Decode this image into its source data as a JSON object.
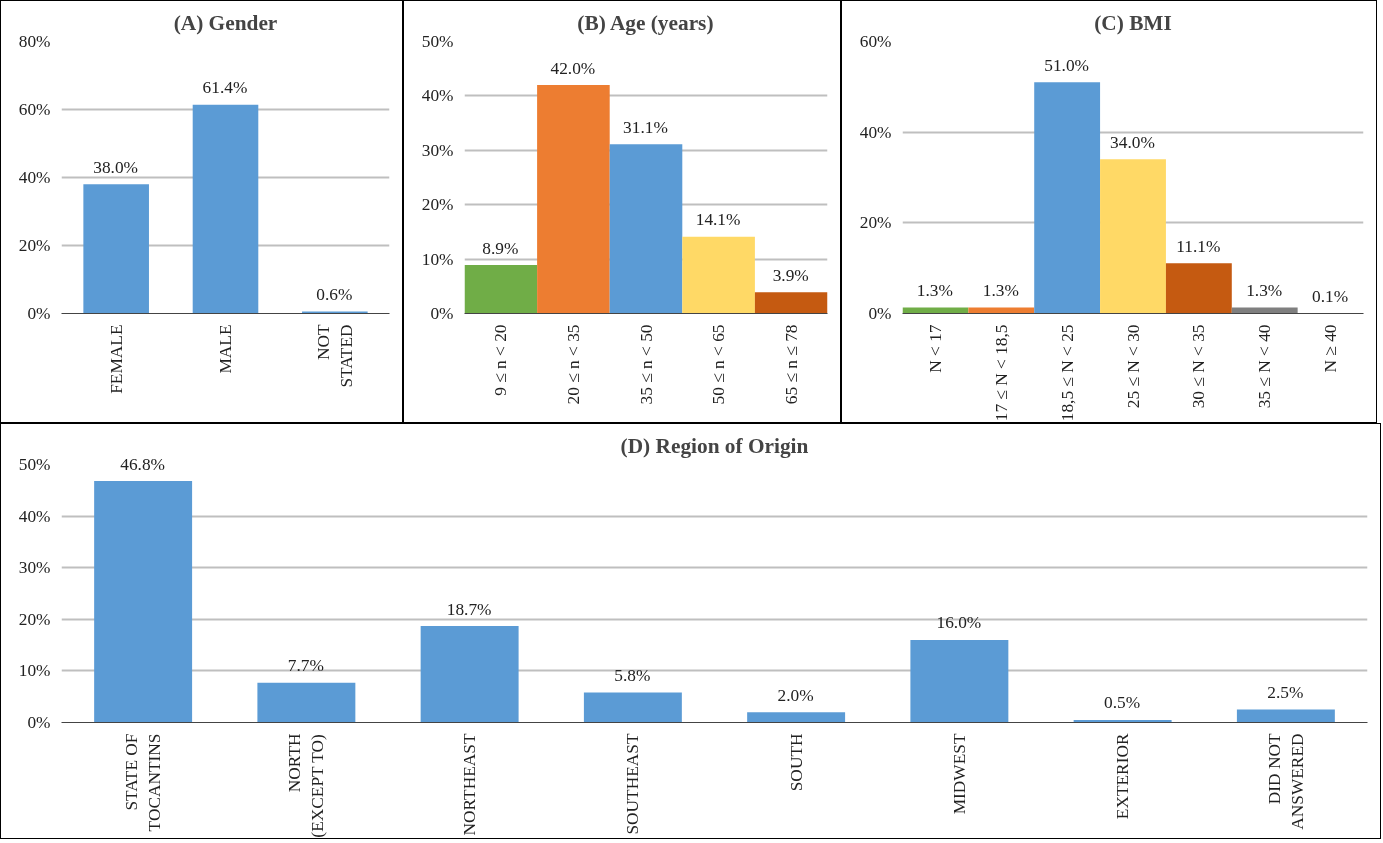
{
  "chart_data": [
    {
      "type": "bar",
      "title": "(A) Gender",
      "categories": [
        "FEMALE",
        "MALE",
        "NOT\nSTATED"
      ],
      "values": [
        38.0,
        61.4,
        0.6
      ],
      "color": "#5b9bd5",
      "value_labels": [
        "38.0%",
        "61.4%",
        "0.6%"
      ],
      "ylim": [
        0,
        80
      ],
      "yticks": [
        {
          "value": 0,
          "label": "0%"
        },
        {
          "value": 20,
          "label": "20%"
        },
        {
          "value": 40,
          "label": "40%"
        },
        {
          "value": 60,
          "label": "60%"
        },
        {
          "value": 80,
          "label": "80%"
        }
      ],
      "grid": "y"
    },
    {
      "type": "bar",
      "title": "(B) Age (years)",
      "categories": [
        "9 ≤ n < 20",
        "20 ≤ n < 35",
        "35 ≤ n < 50",
        "50 ≤ n < 65",
        "65 ≤ n ≤ 78"
      ],
      "values": [
        8.9,
        42.0,
        31.1,
        14.1,
        3.9
      ],
      "colors": [
        "#70ad47",
        "#ed7d31",
        "#5b9bd5",
        "#ffd966",
        "#c55a11"
      ],
      "value_labels": [
        "8.9%",
        "42.0%",
        "31.1%",
        "14.1%",
        "3.9%"
      ],
      "ylim": [
        0,
        50
      ],
      "yticks": [
        {
          "value": 0,
          "label": "0%"
        },
        {
          "value": 10,
          "label": "10%"
        },
        {
          "value": 20,
          "label": "20%"
        },
        {
          "value": 30,
          "label": "30%"
        },
        {
          "value": 40,
          "label": "40%"
        },
        {
          "value": 50,
          "label": "50%"
        }
      ],
      "grid": "y"
    },
    {
      "type": "bar",
      "title": "(C) BMI",
      "categories": [
        "N < 17",
        "17 ≤ N < 18,5",
        "18,5 ≤ N < 25",
        "25 ≤ N < 30",
        "30 ≤ N < 35",
        "35 ≤ N < 40",
        "N ≥ 40"
      ],
      "values": [
        1.3,
        1.3,
        51.0,
        34.0,
        11.1,
        1.3,
        0.1
      ],
      "colors": [
        "#70ad47",
        "#ed7d31",
        "#5b9bd5",
        "#ffd966",
        "#c55a11",
        "#7f7f7f",
        "#5b9bd5"
      ],
      "value_labels": [
        "1.3%",
        "1.3%",
        "51.0%",
        "34.0%",
        "11.1%",
        "1.3%",
        "0.1%"
      ],
      "ylim": [
        0,
        60
      ],
      "yticks": [
        {
          "value": 0,
          "label": "0%"
        },
        {
          "value": 20,
          "label": "20%"
        },
        {
          "value": 40,
          "label": "40%"
        },
        {
          "value": 60,
          "label": "60%"
        }
      ],
      "grid": "y"
    },
    {
      "type": "bar",
      "title": "(D) Region of Origin",
      "categories": [
        "STATE OF\nTOCANTINS",
        "NORTH\n(EXCEPT TO)",
        "NORTHEAST",
        "SOUTHEAST",
        "SOUTH",
        "MIDWEST",
        "EXTERIOR",
        "DID NOT\nANSWERED"
      ],
      "values": [
        46.8,
        7.7,
        18.7,
        5.8,
        2.0,
        16.0,
        0.5,
        2.5
      ],
      "color": "#5b9bd5",
      "value_labels": [
        "46.8%",
        "7.7%",
        "18.7%",
        "5.8%",
        "2.0%",
        "16.0%",
        "0.5%",
        "2.5%"
      ],
      "ylim": [
        0,
        50
      ],
      "yticks": [
        {
          "value": 0,
          "label": "0%"
        },
        {
          "value": 10,
          "label": "10%"
        },
        {
          "value": 20,
          "label": "20%"
        },
        {
          "value": 30,
          "label": "30%"
        },
        {
          "value": 40,
          "label": "40%"
        },
        {
          "value": 50,
          "label": "50%"
        }
      ],
      "grid": "y"
    }
  ]
}
